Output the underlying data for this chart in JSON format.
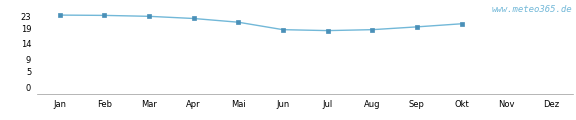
{
  "months": [
    "Jan",
    "Feb",
    "Mar",
    "Apr",
    "Mai",
    "Jun",
    "Jul",
    "Aug",
    "Sep",
    "Okt",
    "Nov",
    "Dez"
  ],
  "values": [
    23.3,
    23.2,
    22.9,
    22.2,
    21.0,
    18.6,
    18.3,
    18.6,
    19.5,
    20.5,
    null,
    null
  ],
  "line_color": "#72b8d8",
  "marker_color": "#4a90b8",
  "marker_size": 2.5,
  "line_width": 1.0,
  "yticks": [
    0,
    5,
    9,
    14,
    19,
    23
  ],
  "ylim": [
    -2,
    27
  ],
  "xlim": [
    -0.5,
    11.5
  ],
  "background_color": "#ffffff",
  "watermark": "www.meteo365.de",
  "watermark_color": "#72b8d8",
  "watermark_fontsize": 6.5,
  "tick_fontsize": 6.0
}
